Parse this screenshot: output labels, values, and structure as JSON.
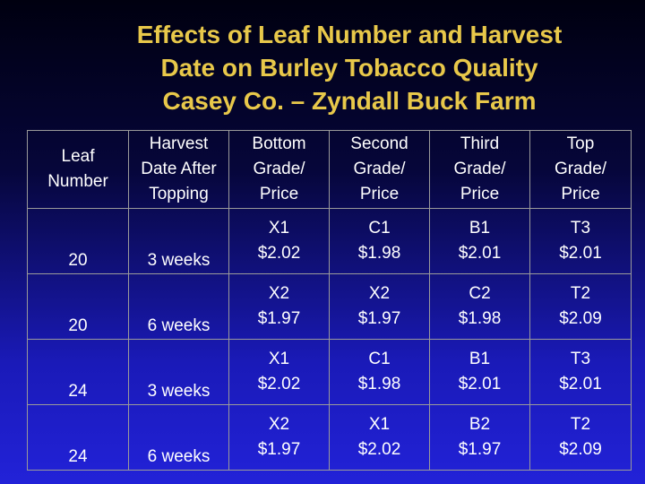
{
  "title": {
    "line1": "Effects of Leaf Number and Harvest",
    "line2": "Date on Burley Tobacco Quality",
    "line3": "Casey Co. – Zyndall Buck Farm"
  },
  "table": {
    "headers": [
      [
        "Leaf",
        "Number"
      ],
      [
        "Harvest",
        "Date After",
        "Topping"
      ],
      [
        "Bottom",
        "Grade/",
        "Price"
      ],
      [
        "Second",
        "Grade/",
        "Price"
      ],
      [
        "Third",
        "Grade/",
        "Price"
      ],
      [
        "Top",
        "Grade/",
        "Price"
      ]
    ],
    "rows": [
      {
        "leaf": "20",
        "date": "3 weeks",
        "grades": [
          [
            "X1",
            "$2.02"
          ],
          [
            "C1",
            "$1.98"
          ],
          [
            "B1",
            "$2.01"
          ],
          [
            "T3",
            "$2.01"
          ]
        ]
      },
      {
        "leaf": "20",
        "date": "6 weeks",
        "grades": [
          [
            "X2",
            "$1.97"
          ],
          [
            "X2",
            "$1.97"
          ],
          [
            "C2",
            "$1.98"
          ],
          [
            "T2",
            "$2.09"
          ]
        ]
      },
      {
        "leaf": "24",
        "date": "3 weeks",
        "grades": [
          [
            "X1",
            "$2.02"
          ],
          [
            "C1",
            "$1.98"
          ],
          [
            "B1",
            "$2.01"
          ],
          [
            "T3",
            "$2.01"
          ]
        ]
      },
      {
        "leaf": "24",
        "date": "6 weeks",
        "grades": [
          [
            "X2",
            "$1.97"
          ],
          [
            "X1",
            "$2.02"
          ],
          [
            "B2",
            "$1.97"
          ],
          [
            "T2",
            "$2.09"
          ]
        ]
      }
    ]
  }
}
